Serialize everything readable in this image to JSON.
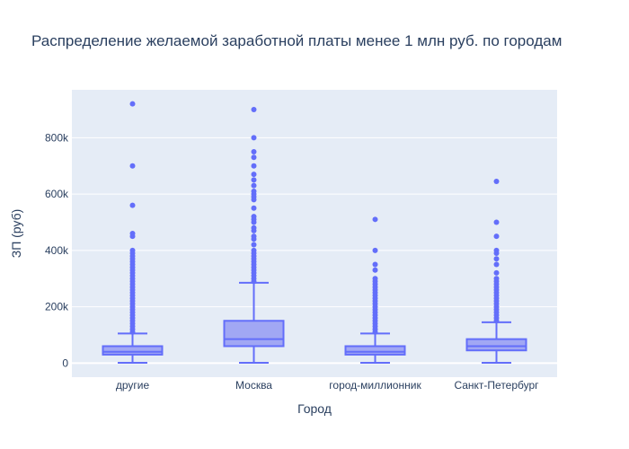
{
  "chart_data": {
    "type": "box",
    "title": "Распределение желаемой заработной платы менее 1 млн руб. по городам",
    "xlabel": "Город",
    "ylabel": "ЗП (руб)",
    "ylim": [
      -50000,
      970000
    ],
    "yticks": [
      0,
      200000,
      400000,
      600000,
      800000
    ],
    "ytick_labels": [
      "0",
      "200k",
      "400k",
      "600k",
      "800k"
    ],
    "grid": true,
    "legend": "none",
    "colors": {
      "plot_bg": "#e5ecf6",
      "box_line": "#636efa",
      "box_fill": "#a1a7f4",
      "grid": "#ffffff",
      "text": "#2a3f5f"
    },
    "categories": [
      "другие",
      "Москва",
      "город-миллионник",
      "Санкт-Петербург"
    ],
    "boxes": [
      {
        "category": "другие",
        "q1": 30000,
        "median": 40000,
        "q3": 60000,
        "whisker_low": 1000,
        "whisker_high": 105000,
        "outliers": [
          920000,
          700000,
          560000,
          460000,
          450000,
          400000,
          390000,
          380000,
          370000,
          360000,
          350000,
          340000,
          330000,
          320000,
          310000,
          300000,
          290000,
          280000,
          270000,
          260000,
          250000,
          240000,
          230000,
          220000,
          210000,
          200000,
          190000,
          180000,
          170000,
          160000,
          150000,
          140000,
          130000,
          120000,
          110000
        ]
      },
      {
        "category": "Москва",
        "q1": 60000,
        "median": 85000,
        "q3": 150000,
        "whisker_low": 1000,
        "whisker_high": 285000,
        "outliers": [
          900000,
          800000,
          750000,
          730000,
          700000,
          670000,
          650000,
          630000,
          610000,
          600000,
          590000,
          580000,
          550000,
          520000,
          510000,
          500000,
          480000,
          470000,
          450000,
          440000,
          420000,
          400000,
          390000,
          380000,
          370000,
          360000,
          350000,
          340000,
          330000,
          320000,
          310000,
          300000,
          290000
        ]
      },
      {
        "category": "город-миллионник",
        "q1": 30000,
        "median": 40000,
        "q3": 60000,
        "whisker_low": 1000,
        "whisker_high": 105000,
        "outliers": [
          510000,
          400000,
          350000,
          330000,
          300000,
          290000,
          280000,
          270000,
          260000,
          250000,
          240000,
          230000,
          220000,
          210000,
          200000,
          190000,
          180000,
          170000,
          160000,
          150000,
          140000,
          130000,
          120000,
          110000
        ]
      },
      {
        "category": "Санкт-Петербург",
        "q1": 45000,
        "median": 60000,
        "q3": 85000,
        "whisker_low": 1000,
        "whisker_high": 145000,
        "outliers": [
          645000,
          500000,
          450000,
          400000,
          390000,
          370000,
          350000,
          320000,
          300000,
          290000,
          280000,
          270000,
          260000,
          250000,
          240000,
          230000,
          220000,
          210000,
          200000,
          190000,
          180000,
          170000,
          160000,
          150000
        ]
      }
    ]
  }
}
